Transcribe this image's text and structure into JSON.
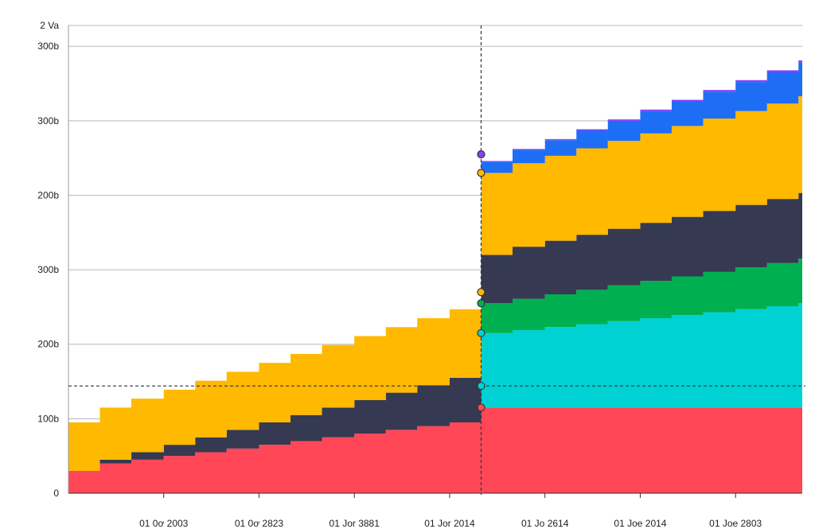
{
  "chart_data": {
    "type": "area",
    "stacked": true,
    "grid": true,
    "y_ticks": [
      {
        "value": 0,
        "label": "0"
      },
      {
        "value": 1000,
        "label": "100b"
      },
      {
        "value": 2000,
        "label": "200b"
      },
      {
        "value": 3000,
        "label": "300b"
      },
      {
        "value": 4000,
        "label": "200b"
      },
      {
        "value": 5000,
        "label": "300b"
      },
      {
        "value": 6000,
        "label": "300b"
      },
      {
        "value": 6280,
        "label": "2 Va"
      }
    ],
    "ylim": [
      0,
      6280
    ],
    "x_ticks": [
      {
        "value": 1,
        "label": "01 0ơ 2003"
      },
      {
        "value": 2,
        "label": "01 0ơ 2823"
      },
      {
        "value": 3,
        "label": "01 Jor 3881"
      },
      {
        "value": 4,
        "label": "01 Jor 2014"
      },
      {
        "value": 5,
        "label": "01 Jo 2614"
      },
      {
        "value": 6,
        "label": "01 Joe 2014"
      },
      {
        "value": 7,
        "label": "01 Joe 2803"
      }
    ],
    "xlim": [
      0,
      7.7
    ],
    "x": [
      0,
      0.33,
      0.66,
      1,
      1.33,
      1.66,
      2,
      2.33,
      2.66,
      3,
      3.33,
      3.66,
      4,
      4.33,
      4.33,
      4.66,
      5,
      5.33,
      5.66,
      6,
      6.33,
      6.66,
      7,
      7.33,
      7.66
    ],
    "series": [
      {
        "color": "#ff4757",
        "values": [
          300,
          400,
          450,
          500,
          550,
          600,
          650,
          700,
          750,
          800,
          850,
          900,
          950,
          1000,
          1150,
          1150,
          1150,
          1150,
          1150,
          1150,
          1150,
          1150,
          1150,
          1150,
          1150
        ]
      },
      {
        "color": "#00d2d3",
        "values": [
          0,
          0,
          0,
          0,
          0,
          0,
          0,
          0,
          0,
          0,
          0,
          0,
          0,
          0,
          1000,
          1040,
          1080,
          1120,
          1160,
          1200,
          1240,
          1280,
          1320,
          1360,
          1400
        ]
      },
      {
        "color": "#00b050",
        "values": [
          0,
          0,
          0,
          0,
          0,
          0,
          0,
          0,
          0,
          0,
          0,
          0,
          0,
          0,
          400,
          420,
          440,
          460,
          480,
          500,
          520,
          540,
          560,
          580,
          600
        ]
      },
      {
        "color": "#353a52",
        "values": [
          0,
          50,
          100,
          150,
          200,
          250,
          300,
          350,
          400,
          450,
          500,
          550,
          600,
          650,
          650,
          700,
          720,
          740,
          760,
          780,
          800,
          820,
          840,
          860,
          880
        ]
      },
      {
        "color": "#ffb900",
        "values": [
          650,
          700,
          720,
          740,
          760,
          780,
          800,
          820,
          840,
          860,
          880,
          900,
          920,
          950,
          1100,
          1120,
          1140,
          1160,
          1180,
          1200,
          1220,
          1240,
          1260,
          1280,
          1300
        ]
      },
      {
        "color": "#1e6ef5",
        "values": [
          0,
          0,
          0,
          0,
          0,
          0,
          0,
          0,
          0,
          0,
          0,
          0,
          0,
          0,
          150,
          180,
          210,
          240,
          270,
          300,
          330,
          360,
          390,
          420,
          450
        ]
      },
      {
        "color": "#8a3ffc",
        "values": [
          0,
          0,
          0,
          0,
          0,
          0,
          0,
          0,
          0,
          0,
          0,
          0,
          0,
          0,
          10,
          12,
          14,
          16,
          18,
          20,
          22,
          24,
          26,
          28,
          30
        ]
      }
    ],
    "crosshair": {
      "x": 4.33,
      "y": 1440
    },
    "markers": [
      {
        "x": 4.33,
        "y": 1150,
        "color": "#ff4757"
      },
      {
        "x": 4.33,
        "y": 1440,
        "color": "#00d2d3"
      },
      {
        "x": 4.33,
        "y": 2150,
        "color": "#00d2d3"
      },
      {
        "x": 4.33,
        "y": 2550,
        "color": "#00b050"
      },
      {
        "x": 4.33,
        "y": 2700,
        "color": "#ffb900"
      },
      {
        "x": 4.33,
        "y": 4300,
        "color": "#ffb900"
      },
      {
        "x": 4.33,
        "y": 4550,
        "color": "#8a3ffc"
      }
    ]
  }
}
